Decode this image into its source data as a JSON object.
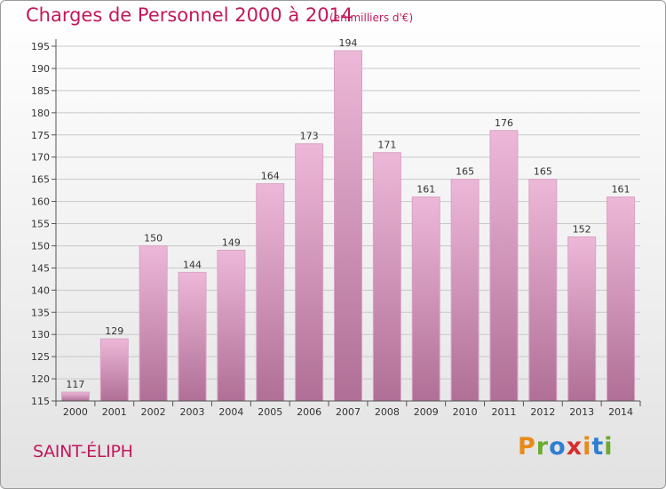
{
  "header": {
    "title": "Charges de Personnel 2000 à 2014",
    "subtitle": "(en milliers d'€)"
  },
  "footer": {
    "commune": "SAINT-ÉLIPH",
    "logo": {
      "text": "Proxiti",
      "letters": [
        "P",
        "r",
        "o",
        "x",
        "i",
        "t",
        "i"
      ],
      "colors": [
        "#e88a1a",
        "#6aab2e",
        "#2f7fd1",
        "#d62d2d",
        "#e88a1a",
        "#2f7fd1",
        "#6aab2e"
      ]
    }
  },
  "colors": {
    "bar_light": "#edb8d8",
    "bar_dark": "#b06f96",
    "bar_edge": "#d9a3c4",
    "text_accent": "#c2185b",
    "grid": "#c8c8c8"
  },
  "chart_data": {
    "type": "bar",
    "title": "Charges de Personnel 2000 à 2014",
    "subtitle": "(en milliers d'€)",
    "categories": [
      "2000",
      "2001",
      "2002",
      "2003",
      "2004",
      "2005",
      "2006",
      "2007",
      "2008",
      "2009",
      "2010",
      "2011",
      "2012",
      "2013",
      "2014"
    ],
    "values": [
      117,
      129,
      150,
      144,
      149,
      164,
      173,
      194,
      171,
      161,
      165,
      176,
      165,
      152,
      161
    ],
    "ylim": [
      115,
      195
    ],
    "yticks": [
      115,
      120,
      125,
      130,
      135,
      140,
      145,
      150,
      155,
      160,
      165,
      170,
      175,
      180,
      185,
      190,
      195
    ],
    "grid": true,
    "data_labels": true
  }
}
